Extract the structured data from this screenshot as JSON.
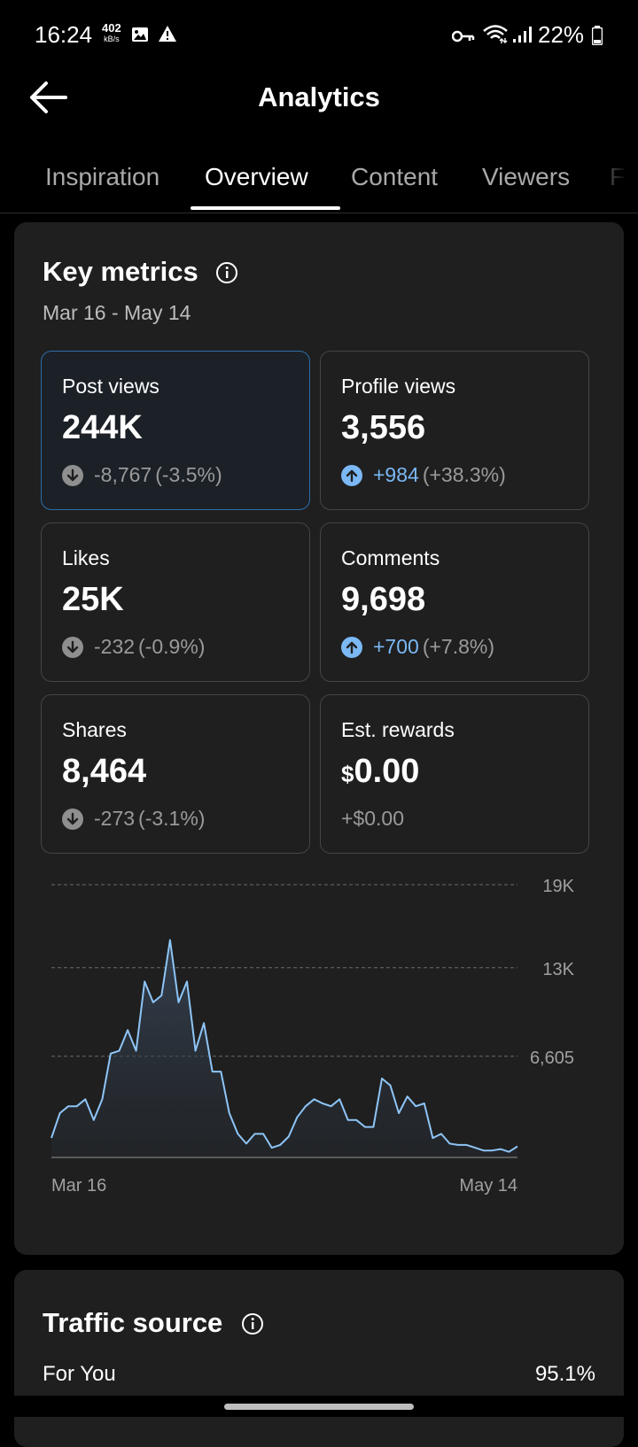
{
  "status_bar": {
    "time": "16:24",
    "net_speed": "402",
    "net_unit": "kB/s",
    "battery": "22%"
  },
  "header": {
    "title": "Analytics"
  },
  "tabs": [
    {
      "label": "Inspiration"
    },
    {
      "label": "Overview"
    },
    {
      "label": "Content"
    },
    {
      "label": "Viewers"
    },
    {
      "label": "F"
    }
  ],
  "key_metrics": {
    "title": "Key metrics",
    "date_range": "Mar 16 - May 14",
    "metrics": [
      {
        "label": "Post views",
        "value": "244K",
        "delta": "-8,767",
        "pct": "(-3.5%)",
        "direction": "down"
      },
      {
        "label": "Profile views",
        "value": "3,556",
        "delta": "+984",
        "pct": "(+38.3%)",
        "direction": "up"
      },
      {
        "label": "Likes",
        "value": "25K",
        "delta": "-232",
        "pct": "(-0.9%)",
        "direction": "down"
      },
      {
        "label": "Comments",
        "value": "9,698",
        "delta": "+700",
        "pct": "(+7.8%)",
        "direction": "up"
      },
      {
        "label": "Shares",
        "value": "8,464",
        "delta": "-273",
        "pct": "(-3.1%)",
        "direction": "down"
      },
      {
        "label": "Est. rewards",
        "currency": "$",
        "value": "0.00",
        "delta": "+$0.00",
        "pct": "",
        "direction": "none"
      }
    ]
  },
  "chart_data": {
    "type": "area",
    "series": [
      {
        "values": [
          700,
          2500,
          3000,
          3000,
          3500,
          2000,
          3500,
          6800,
          7000,
          8500,
          7000,
          12000,
          10500,
          11000,
          15000,
          10500,
          12000,
          7000,
          9000,
          5500,
          5500,
          2500,
          1000,
          300,
          1000,
          1000,
          0,
          200,
          800,
          2200,
          3000,
          3500,
          3200,
          3000,
          3500,
          2000,
          2000,
          1500,
          1500,
          5000,
          4500,
          2500,
          3700,
          3000,
          3200,
          700,
          1000,
          300,
          200,
          200,
          0,
          -200,
          -200,
          -100,
          -300,
          100
        ]
      }
    ],
    "x_tick_labels": [
      "Mar 16",
      "May 14"
    ],
    "y_tick_labels": [
      "19K",
      "13K",
      "6,605"
    ],
    "y_ticks": [
      19000,
      13000,
      6605
    ],
    "ylim": [
      -700,
      19000
    ],
    "grid": true,
    "line_color": "#8ec5f7"
  },
  "traffic_source": {
    "title": "Traffic source",
    "first_row_label": "For You",
    "first_row_pct": "95.1%"
  }
}
